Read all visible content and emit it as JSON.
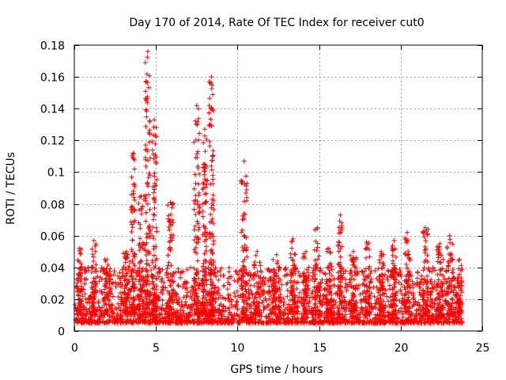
{
  "chart_data": {
    "type": "scatter",
    "title": "Day 170 of 2014, Rate Of TEC Index for receiver cut0",
    "xlabel": "GPS time / hours",
    "ylabel": "ROTI / TECUs",
    "xlim": [
      0,
      25
    ],
    "ylim": [
      0,
      0.18
    ],
    "xticks": [
      0,
      5,
      10,
      15,
      20,
      25
    ],
    "yticks": [
      0,
      0.02,
      0.04,
      0.06,
      0.08,
      0.1,
      0.12,
      0.14,
      0.16,
      0.18
    ],
    "grid": true,
    "marker": "plus",
    "color": "#ff0000",
    "data_extent_hours": [
      0.05,
      23.8
    ],
    "typical_band": [
      0.005,
      0.04
    ],
    "bursts": [
      {
        "center": 0.3,
        "width": 0.3,
        "peak": 0.052
      },
      {
        "center": 1.2,
        "width": 0.3,
        "peak": 0.057
      },
      {
        "center": 2.0,
        "width": 0.4,
        "peak": 0.045
      },
      {
        "center": 3.2,
        "width": 0.4,
        "peak": 0.05
      },
      {
        "center": 3.6,
        "width": 0.25,
        "peak": 0.112
      },
      {
        "center": 4.1,
        "width": 0.35,
        "peak": 0.085
      },
      {
        "center": 4.5,
        "width": 0.3,
        "peak": 0.176
      },
      {
        "center": 4.9,
        "width": 0.3,
        "peak": 0.133
      },
      {
        "center": 5.9,
        "width": 0.35,
        "peak": 0.081
      },
      {
        "center": 7.5,
        "width": 0.35,
        "peak": 0.142
      },
      {
        "center": 8.0,
        "width": 0.3,
        "peak": 0.127
      },
      {
        "center": 8.4,
        "width": 0.3,
        "peak": 0.16
      },
      {
        "center": 10.4,
        "width": 0.35,
        "peak": 0.107
      },
      {
        "center": 11.2,
        "width": 0.4,
        "peak": 0.05
      },
      {
        "center": 12.4,
        "width": 0.5,
        "peak": 0.048
      },
      {
        "center": 13.4,
        "width": 0.3,
        "peak": 0.058
      },
      {
        "center": 14.2,
        "width": 0.4,
        "peak": 0.05
      },
      {
        "center": 14.9,
        "width": 0.4,
        "peak": 0.065
      },
      {
        "center": 15.6,
        "width": 0.4,
        "peak": 0.052
      },
      {
        "center": 16.3,
        "width": 0.3,
        "peak": 0.073
      },
      {
        "center": 17.1,
        "width": 0.4,
        "peak": 0.05
      },
      {
        "center": 17.9,
        "width": 0.4,
        "peak": 0.056
      },
      {
        "center": 18.8,
        "width": 0.4,
        "peak": 0.05
      },
      {
        "center": 19.6,
        "width": 0.3,
        "peak": 0.057
      },
      {
        "center": 20.4,
        "width": 0.35,
        "peak": 0.062
      },
      {
        "center": 21.5,
        "width": 0.35,
        "peak": 0.065
      },
      {
        "center": 22.4,
        "width": 0.4,
        "peak": 0.055
      },
      {
        "center": 23.0,
        "width": 0.4,
        "peak": 0.06
      },
      {
        "center": 23.6,
        "width": 0.3,
        "peak": 0.045
      }
    ]
  }
}
